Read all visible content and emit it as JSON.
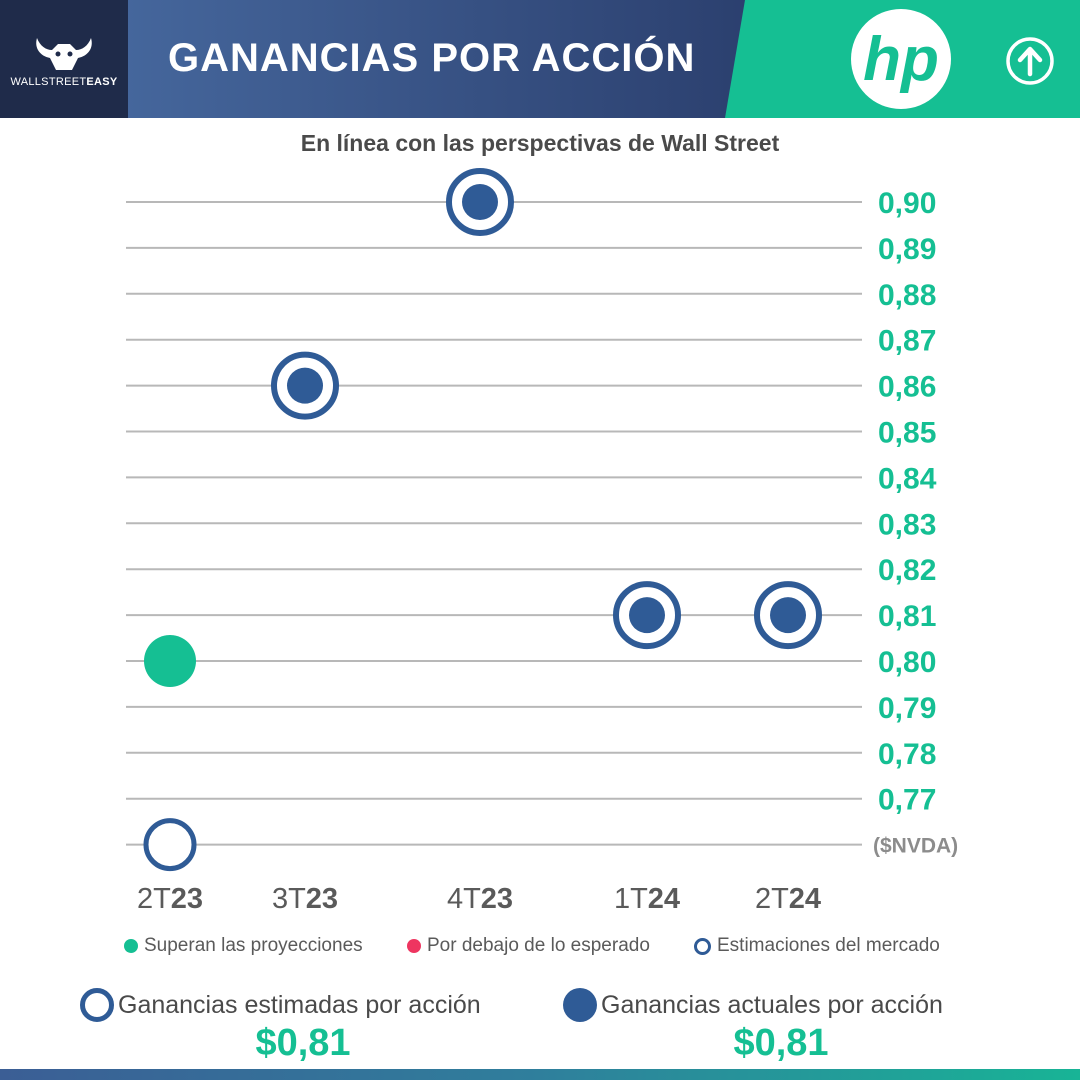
{
  "header": {
    "title": "GANANCIAS POR ACCIÓN",
    "brand_light": "WALLSTREET",
    "brand_bold": "EASY",
    "company_logo_text": "hp",
    "trend_icon": "arrow-up-circle-icon"
  },
  "colors": {
    "navy": "#1f2b4a",
    "blue": "#2f5b96",
    "green": "#15bf93",
    "red": "#ee3560",
    "grid": "#b8b8b8"
  },
  "chart_data": {
    "type": "scatter",
    "title": "En línea con las perspectivas de Wall Street",
    "categories": [
      {
        "prefix": "2T",
        "suffix": "23"
      },
      {
        "prefix": "3T",
        "suffix": "23"
      },
      {
        "prefix": "4T",
        "suffix": "23"
      },
      {
        "prefix": "1T",
        "suffix": "24"
      },
      {
        "prefix": "2T",
        "suffix": "24"
      }
    ],
    "y_ticks": [
      "0,90",
      "0,89",
      "0,88",
      "0,87",
      "0,86",
      "0,85",
      "0,84",
      "0,83",
      "0,82",
      "0,81",
      "0,80",
      "0,79",
      "0,78",
      "0,77"
    ],
    "ylim": [
      0.76,
      0.9
    ],
    "ylabel_bottom": "($NVDA)",
    "grid": true,
    "y_axis_side": "right",
    "series": [
      {
        "name": "Estimaciones del mercado",
        "values": [
          0.76,
          0.86,
          0.9,
          0.81,
          0.81
        ]
      },
      {
        "name": "Ganancias actuales por acción",
        "values": [
          0.8,
          0.86,
          0.9,
          0.81,
          0.81
        ]
      }
    ],
    "point_status": [
      "beat",
      "inline",
      "inline",
      "inline",
      "inline"
    ]
  },
  "legend": {
    "beat": "Superan las proyecciones",
    "below": "Por debajo de lo esperado",
    "estimate": "Estimaciones del mercado"
  },
  "summary": {
    "estimated_label": "Ganancias estimadas por acción",
    "estimated_value": "$0,81",
    "actual_label": "Ganancias actuales por acción",
    "actual_value": "$0,81"
  }
}
